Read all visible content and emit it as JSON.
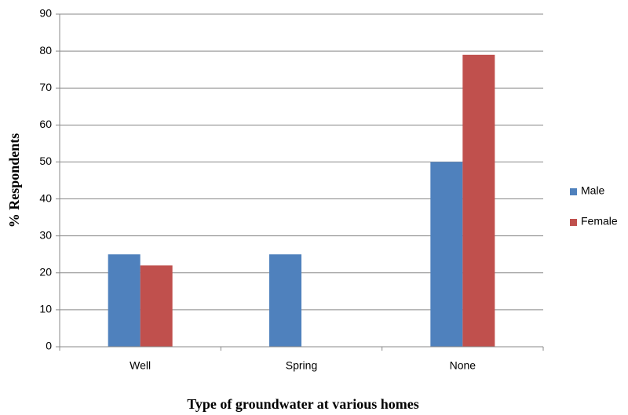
{
  "chart_data": {
    "type": "bar",
    "x_label": "Type of groundwater at various homes",
    "y_label": "% Respondents",
    "categories": [
      "Well",
      "Spring",
      "None"
    ],
    "series": [
      {
        "name": "Male",
        "color": "#4f81bd",
        "values": [
          25,
          25,
          50
        ]
      },
      {
        "name": "Female",
        "color": "#c0504d",
        "values": [
          22,
          0,
          79
        ]
      }
    ],
    "ylim": [
      0,
      90
    ],
    "yticks": [
      0,
      10,
      20,
      30,
      40,
      50,
      60,
      70,
      80,
      90
    ],
    "grid": true,
    "legend": "right"
  }
}
